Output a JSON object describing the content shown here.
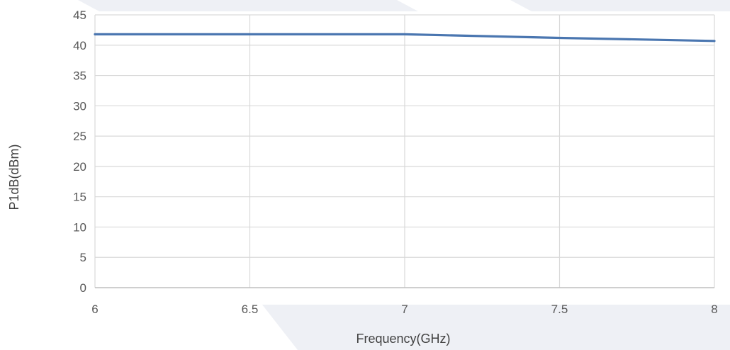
{
  "chart_data": {
    "type": "line",
    "title": "",
    "xlabel": "Frequency(GHz)",
    "ylabel": "P1dB(dBm)",
    "xlim": [
      6,
      8
    ],
    "ylim": [
      0,
      45
    ],
    "x_ticks": [
      "6",
      "6.5",
      "7",
      "7.5",
      "8"
    ],
    "y_ticks": [
      "0",
      "5",
      "10",
      "15",
      "20",
      "25",
      "30",
      "35",
      "40",
      "45"
    ],
    "grid": true,
    "legend": "none",
    "series": [
      {
        "color": "#4a76b0",
        "points": [
          {
            "x": 6.0,
            "y": 41.8
          },
          {
            "x": 6.5,
            "y": 41.8
          },
          {
            "x": 7.0,
            "y": 41.8
          },
          {
            "x": 7.5,
            "y": 41.2
          },
          {
            "x": 8.0,
            "y": 40.7
          }
        ]
      }
    ]
  },
  "colors": {
    "grid": "#d9d9d9",
    "axis": "#bfbfbf",
    "watermark": "#eef0f5"
  }
}
